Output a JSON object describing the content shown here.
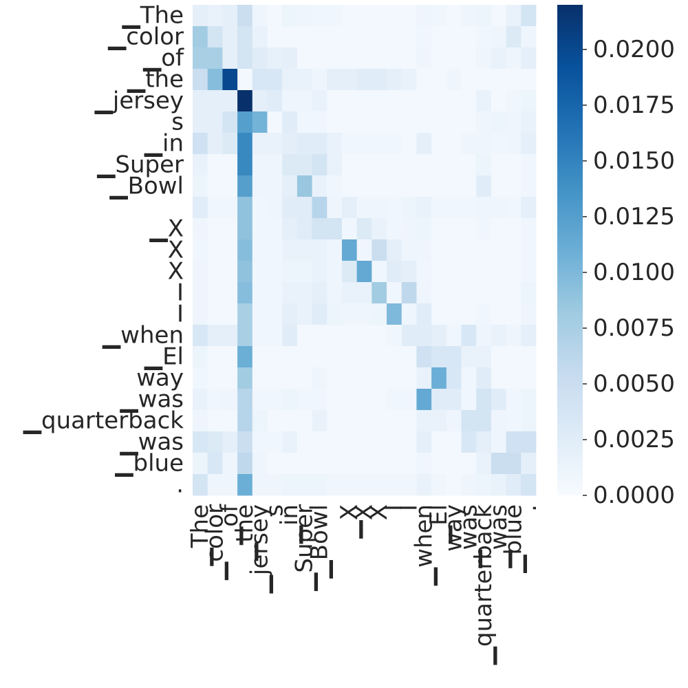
{
  "chart_data": {
    "type": "heatmap",
    "colormap": "Blues",
    "colorbar": {
      "min": 0,
      "max": 0.022,
      "ticks": [
        0.0,
        0.0025,
        0.005,
        0.0075,
        0.01,
        0.0125,
        0.015,
        0.0175,
        0.02
      ],
      "tick_labels": [
        "0.0000",
        "0.0025",
        "0.0050",
        "0.0075",
        "0.0100",
        "0.0125",
        "0.0150",
        "0.0175",
        "0.0200"
      ]
    },
    "row_labels": [
      "▁The",
      "▁color",
      "▁of",
      "▁the",
      "▁jersey",
      "s",
      "▁in",
      "▁Super",
      "▁Bowl",
      "",
      "▁X",
      "X",
      "X",
      "I",
      "I",
      "▁when",
      "▁El",
      "way",
      "▁was",
      "▁quarterback",
      "▁was",
      "▁blue",
      "."
    ],
    "col_labels": [
      "▁The",
      "▁color",
      "▁of",
      "▁the",
      "▁jersey",
      "s",
      "▁in",
      "▁Super",
      "▁Bowl",
      "",
      "▁X",
      "X",
      "X",
      "I",
      "I",
      "▁when",
      "▁El",
      "way",
      "▁was",
      "▁quarterback",
      "▁was",
      "▁blue",
      "."
    ],
    "values": [
      [
        0.002,
        0.0015,
        0.002,
        0.005,
        0.001,
        0.0005,
        0.0012,
        0.001,
        0.0008,
        0.0008,
        0.0006,
        0.0006,
        0.0006,
        0.0006,
        0.0006,
        0.001,
        0.0008,
        0.0006,
        0.001,
        0.0012,
        0.0006,
        0.0015,
        0.004
      ],
      [
        0.008,
        0.004,
        0.002,
        0.004,
        0.0015,
        0.0005,
        0.0006,
        0.0006,
        0.0006,
        0.0005,
        0.0005,
        0.0005,
        0.0005,
        0.0005,
        0.0005,
        0.0008,
        0.0006,
        0.0005,
        0.0006,
        0.0008,
        0.001,
        0.003,
        0.001
      ],
      [
        0.0075,
        0.0075,
        0.002,
        0.004,
        0.0025,
        0.0018,
        0.002,
        0.0006,
        0.0005,
        0.0005,
        0.0005,
        0.0005,
        0.0005,
        0.0005,
        0.0005,
        0.001,
        0.0006,
        0.0005,
        0.0006,
        0.001,
        0.0015,
        0.001,
        0.002
      ],
      [
        0.005,
        0.0095,
        0.02,
        0.0005,
        0.0035,
        0.0035,
        0.0015,
        0.0015,
        0.001,
        0.002,
        0.002,
        0.0025,
        0.0025,
        0.002,
        0.0015,
        0.0005,
        0.0005,
        0.001,
        0.0005,
        0.0005,
        0.0005,
        0.0005,
        0.0005
      ],
      [
        0.002,
        0.002,
        0.002,
        0.022,
        0.002,
        0.0025,
        0.001,
        0.001,
        0.0015,
        0.0005,
        0.0005,
        0.0005,
        0.0005,
        0.0005,
        0.0005,
        0.0005,
        0.0005,
        0.0005,
        0.0005,
        0.0015,
        0.0005,
        0.0008,
        0.0012
      ],
      [
        0.002,
        0.002,
        0.004,
        0.0125,
        0.0105,
        0.0005,
        0.0025,
        0.0008,
        0.0008,
        0.0006,
        0.0006,
        0.0006,
        0.0006,
        0.0006,
        0.0006,
        0.0006,
        0.0006,
        0.0006,
        0.0006,
        0.001,
        0.0012,
        0.001,
        0.0015
      ],
      [
        0.0045,
        0.002,
        0.003,
        0.0145,
        0.0015,
        0.0015,
        0.0022,
        0.0025,
        0.0025,
        0.0015,
        0.0008,
        0.0008,
        0.0008,
        0.0008,
        0.0006,
        0.002,
        0.0006,
        0.0006,
        0.001,
        0.001,
        0.0008,
        0.001,
        0.002
      ],
      [
        0.0015,
        0.0006,
        0.0006,
        0.0145,
        0.001,
        0.001,
        0.003,
        0.003,
        0.004,
        0.0015,
        0.0006,
        0.0006,
        0.0006,
        0.0006,
        0.0006,
        0.0006,
        0.0006,
        0.0006,
        0.0006,
        0.0012,
        0.0006,
        0.0006,
        0.0008
      ],
      [
        0.0012,
        0.0006,
        0.0006,
        0.0125,
        0.001,
        0.001,
        0.002,
        0.0085,
        0.0015,
        0.0008,
        0.0006,
        0.0006,
        0.0006,
        0.0006,
        0.0006,
        0.0006,
        0.0006,
        0.0006,
        0.0006,
        0.0025,
        0.0006,
        0.0006,
        0.0008
      ],
      [
        0.0025,
        0.0008,
        0.0008,
        0.009,
        0.0008,
        0.001,
        0.0025,
        0.0025,
        0.0065,
        0.001,
        0.002,
        0.001,
        0.001,
        0.0008,
        0.0012,
        0.0015,
        0.0008,
        0.0008,
        0.0008,
        0.001,
        0.001,
        0.0008,
        0.002
      ],
      [
        0.001,
        0.0006,
        0.0006,
        0.009,
        0.0008,
        0.0008,
        0.002,
        0.0025,
        0.004,
        0.004,
        0.0008,
        0.003,
        0.0015,
        0.0008,
        0.001,
        0.0012,
        0.0006,
        0.0006,
        0.0006,
        0.0008,
        0.0006,
        0.0006,
        0.0008
      ],
      [
        0.0008,
        0.0006,
        0.0006,
        0.0095,
        0.0008,
        0.0008,
        0.0015,
        0.0015,
        0.0015,
        0.001,
        0.0115,
        0.0008,
        0.005,
        0.002,
        0.001,
        0.001,
        0.0006,
        0.0006,
        0.0006,
        0.0006,
        0.0006,
        0.0006,
        0.0008
      ],
      [
        0.001,
        0.0006,
        0.0006,
        0.009,
        0.0008,
        0.0008,
        0.0012,
        0.0012,
        0.0015,
        0.001,
        0.003,
        0.0115,
        0.0008,
        0.0025,
        0.002,
        0.0008,
        0.0006,
        0.0006,
        0.0006,
        0.0006,
        0.0006,
        0.0006,
        0.0008
      ],
      [
        0.001,
        0.0006,
        0.0006,
        0.0095,
        0.0008,
        0.0008,
        0.0015,
        0.0015,
        0.002,
        0.001,
        0.0015,
        0.0015,
        0.008,
        0.0008,
        0.006,
        0.001,
        0.0006,
        0.0006,
        0.0006,
        0.0006,
        0.0006,
        0.0006,
        0.0012
      ],
      [
        0.001,
        0.0006,
        0.0006,
        0.0075,
        0.0008,
        0.0008,
        0.002,
        0.0015,
        0.0025,
        0.0012,
        0.001,
        0.001,
        0.0012,
        0.01,
        0.001,
        0.0025,
        0.0006,
        0.0006,
        0.0006,
        0.0008,
        0.0006,
        0.0006,
        0.001
      ],
      [
        0.0035,
        0.002,
        0.002,
        0.0075,
        0.0008,
        0.0008,
        0.0025,
        0.0006,
        0.0006,
        0.0006,
        0.0006,
        0.0006,
        0.0006,
        0.0008,
        0.0025,
        0.0025,
        0.002,
        0.0008,
        0.0035,
        0.001,
        0.0015,
        0.001,
        0.002
      ],
      [
        0.0012,
        0.0006,
        0.0006,
        0.011,
        0.0006,
        0.0006,
        0.0006,
        0.0006,
        0.0006,
        0.0006,
        0.0006,
        0.0006,
        0.0006,
        0.0006,
        0.0006,
        0.0045,
        0.0035,
        0.0035,
        0.0015,
        0.0015,
        0.0006,
        0.0006,
        0.0006
      ],
      [
        0.0008,
        0.0006,
        0.0006,
        0.008,
        0.0006,
        0.0006,
        0.0006,
        0.0006,
        0.001,
        0.0006,
        0.0006,
        0.0006,
        0.0006,
        0.0006,
        0.0006,
        0.0015,
        0.011,
        0.0035,
        0.0008,
        0.0025,
        0.0006,
        0.0006,
        0.0006
      ],
      [
        0.0015,
        0.0008,
        0.001,
        0.0065,
        0.0008,
        0.0008,
        0.0012,
        0.0008,
        0.0008,
        0.0006,
        0.0006,
        0.0006,
        0.0006,
        0.0008,
        0.0008,
        0.0115,
        0.0025,
        0.0025,
        0.0008,
        0.004,
        0.0025,
        0.0008,
        0.0012
      ],
      [
        0.001,
        0.0006,
        0.0006,
        0.0065,
        0.0012,
        0.0006,
        0.0006,
        0.0006,
        0.0015,
        0.0006,
        0.0006,
        0.0006,
        0.0006,
        0.0006,
        0.0006,
        0.0015,
        0.0015,
        0.001,
        0.004,
        0.004,
        0.001,
        0.0008,
        0.0012
      ],
      [
        0.0035,
        0.003,
        0.002,
        0.005,
        0.0008,
        0.0008,
        0.0015,
        0.0006,
        0.0006,
        0.0006,
        0.0006,
        0.0006,
        0.0006,
        0.0006,
        0.0006,
        0.002,
        0.0006,
        0.0006,
        0.0035,
        0.002,
        0.001,
        0.0045,
        0.0045
      ],
      [
        0.0012,
        0.0035,
        0.001,
        0.006,
        0.001,
        0.0006,
        0.0006,
        0.0006,
        0.0006,
        0.0006,
        0.0006,
        0.0006,
        0.0006,
        0.0006,
        0.0006,
        0.0008,
        0.0006,
        0.0006,
        0.0006,
        0.0015,
        0.005,
        0.005,
        0.002
      ],
      [
        0.004,
        0.001,
        0.001,
        0.011,
        0.001,
        0.001,
        0.0012,
        0.0012,
        0.0012,
        0.0008,
        0.0008,
        0.0008,
        0.0008,
        0.0008,
        0.0008,
        0.0015,
        0.0008,
        0.0006,
        0.001,
        0.0012,
        0.0015,
        0.0025,
        0.004
      ]
    ]
  }
}
